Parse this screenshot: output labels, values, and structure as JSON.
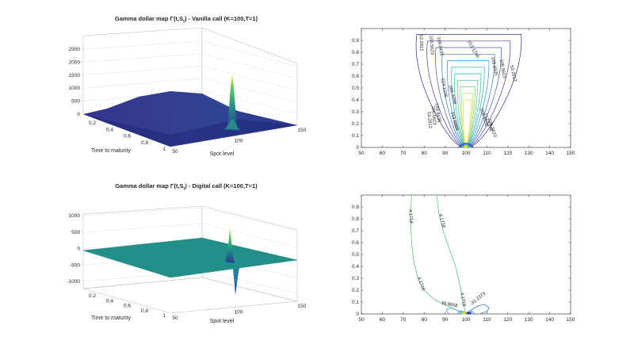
{
  "colors": {
    "axis": "#262626",
    "grid": "#e6e6e6",
    "surface_low": "#2a1f80",
    "surface_mid": "#20a486",
    "surface_high": "#fde725"
  },
  "chart_data": [
    {
      "type": "surface",
      "title": "Gamma dollar map Γ(t,S_t) - Vanilla call (K=100,T=1)",
      "title_prefix": "Gamma dollar map Γ(t,S",
      "title_sub": "t",
      "title_suffix": ") - Vanilla call (K=100,T=1)",
      "xlabel": "Spot level",
      "ylabel": "Time to maturity",
      "x_ticks": [
        "50",
        "100",
        "150"
      ],
      "y_ticks": [
        "0.2",
        "0.4",
        "0.6",
        "0.8",
        "1"
      ],
      "z_ticks": [
        "0",
        "500",
        "1000",
        "1500",
        "2000",
        "2500"
      ],
      "xlim": [
        50,
        150
      ],
      "ylim": [
        0,
        1
      ],
      "zlim": [
        0,
        2500
      ],
      "strike": 100,
      "peak_z": 2100
    },
    {
      "type": "contour",
      "x_ticks": [
        "50",
        "60",
        "70",
        "80",
        "90",
        "100",
        "110",
        "120",
        "130",
        "140",
        "150"
      ],
      "y_ticks": [
        "0",
        "0.1",
        "0.2",
        "0.3",
        "0.4",
        "0.5",
        "0.6",
        "0.7",
        "0.8",
        "0.9"
      ],
      "xlim": [
        50,
        150
      ],
      "ylim": [
        0,
        1
      ],
      "levels": [
        "53.2812",
        "106.5623",
        "159.8435",
        "213.1246",
        "266.4058",
        "319.6869"
      ],
      "labels": [
        {
          "text": "53.2812",
          "x": 78,
          "y": 0.88,
          "rot": 88
        },
        {
          "text": "106.5623",
          "x": 83,
          "y": 0.86,
          "rot": 86
        },
        {
          "text": "159.8435",
          "x": 87,
          "y": 0.85,
          "rot": 80
        },
        {
          "text": "213.1246",
          "x": 103,
          "y": 0.82,
          "rot": 60
        },
        {
          "text": "159.8435",
          "x": 113,
          "y": 0.68,
          "rot": 78
        },
        {
          "text": "106.5623",
          "x": 117,
          "y": 0.66,
          "rot": 80
        },
        {
          "text": "53.2812",
          "x": 122,
          "y": 0.62,
          "rot": 78
        },
        {
          "text": "213.1246",
          "x": 89,
          "y": 0.5,
          "rot": 80
        },
        {
          "text": "266.4058",
          "x": 93,
          "y": 0.44,
          "rot": 75
        },
        {
          "text": "319.6869",
          "x": 94,
          "y": 0.22,
          "rot": 75
        },
        {
          "text": "159.8435",
          "x": 86,
          "y": 0.29,
          "rot": 82
        },
        {
          "text": "106.5623",
          "x": 84,
          "y": 0.27,
          "rot": 85
        },
        {
          "text": "53.2812",
          "x": 82,
          "y": 0.23,
          "rot": 85
        },
        {
          "text": "266.4058",
          "x": 108,
          "y": 0.25,
          "rot": 72
        },
        {
          "text": "213.1246",
          "x": 110,
          "y": 0.21,
          "rot": 70
        },
        {
          "text": "106.5623",
          "x": 112,
          "y": 0.16,
          "rot": 72
        }
      ]
    },
    {
      "type": "surface",
      "title": "Gamma dollar map Γ(t,S_t) - Digital call (K=100,T=1)",
      "title_prefix": "Gamma dollar map Γ(t,S",
      "title_sub": "t",
      "title_suffix": ") - Digital call (K=100,T=1)",
      "xlabel": "Spot level",
      "ylabel": "Time to maturity",
      "x_ticks": [
        "50",
        "100",
        "150"
      ],
      "y_ticks": [
        "0.2",
        "0.4",
        "0.6",
        "0.8",
        "1"
      ],
      "z_ticks": [
        "-1000",
        "-500",
        "0",
        "500",
        "1000"
      ],
      "xlim": [
        50,
        150
      ],
      "ylim": [
        0,
        1
      ],
      "zlim": [
        -1000,
        1000
      ],
      "strike": 100,
      "peak_z": 850,
      "trough_z": -850
    },
    {
      "type": "contour",
      "x_ticks": [
        "50",
        "60",
        "70",
        "80",
        "90",
        "100",
        "110",
        "120",
        "130",
        "140",
        "150"
      ],
      "y_ticks": [
        "0",
        "0.1",
        "0.2",
        "0.3",
        "0.4",
        "0.5",
        "0.6",
        "0.7",
        "0.8",
        "0.9"
      ],
      "xlim": [
        50,
        150
      ],
      "ylim": [
        0,
        1
      ],
      "levels": [
        "4.1718",
        "38.8658",
        "-31.2223"
      ],
      "labels": [
        {
          "text": "4.1718",
          "x": 73,
          "y": 0.82,
          "rot": 85
        },
        {
          "text": "4.1718",
          "x": 88,
          "y": 0.78,
          "rot": 75
        },
        {
          "text": "4.1718",
          "x": 78,
          "y": 0.25,
          "rot": 70
        },
        {
          "text": "4.1718",
          "x": 98,
          "y": 0.12,
          "rot": 80
        },
        {
          "text": "38.8658",
          "x": 92,
          "y": 0.07,
          "rot": 10
        },
        {
          "text": "-31.2223",
          "x": 106,
          "y": 0.12,
          "rot": -40
        }
      ]
    }
  ]
}
